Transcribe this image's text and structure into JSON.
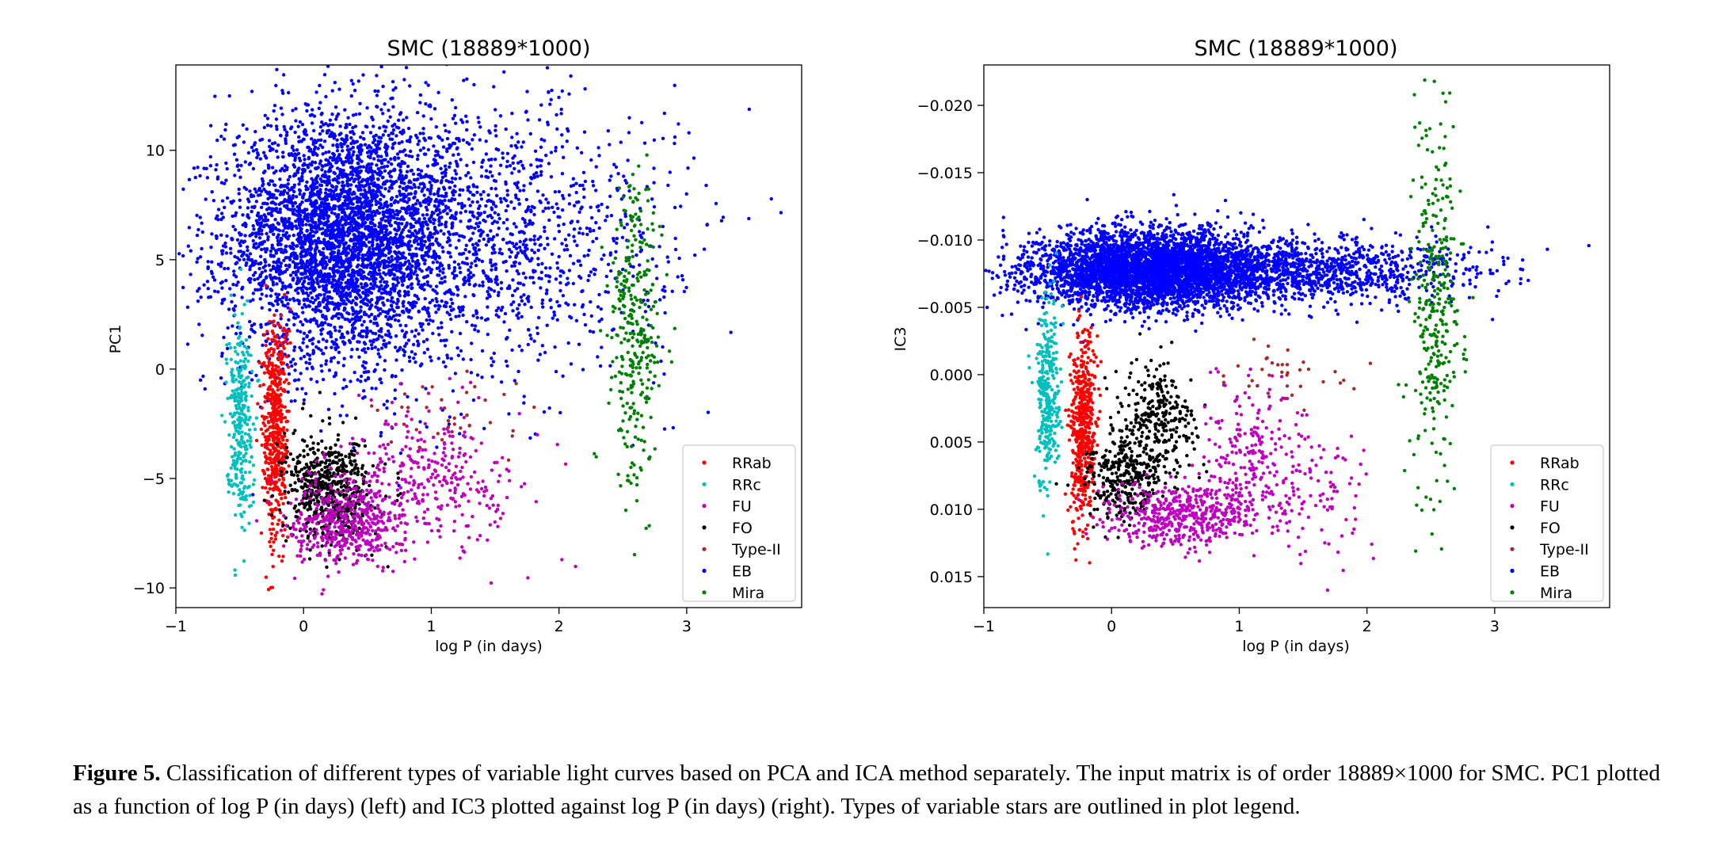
{
  "caption": {
    "label": "Figure 5.",
    "text": "Classification of different types of variable light curves based on PCA and ICA method separately. The input matrix is of order 18889×1000 for SMC. PC1 plotted as a function of log P (in days) (left) and IC3 plotted against log P (in days) (right). Types of variable stars are outlined in plot legend."
  },
  "colors": {
    "RRab": "#ff0000",
    "RRc": "#00bfbf",
    "FU": "#bf00bf",
    "FO": "#000000",
    "Type-II": "#a52a2a",
    "EB": "#0000ff",
    "Mira": "#008000"
  },
  "chart_data": [
    {
      "type": "scatter",
      "title": "SMC (18889*1000)",
      "xlabel": "log P (in days)",
      "ylabel": "PC1",
      "xlim": [
        -1.0,
        3.9
      ],
      "ylim": [
        -10.9,
        13.9
      ],
      "y_inverted": false,
      "xticks": [
        -1,
        0,
        1,
        2,
        3
      ],
      "xtick_labels": [
        "−1",
        "0",
        "1",
        "2",
        "3"
      ],
      "yticks": [
        -10,
        -5,
        0,
        5,
        10
      ],
      "ytick_labels": [
        "−10",
        "−5",
        "0",
        "5",
        "10"
      ],
      "grid": false,
      "legend_position": "bottom-right",
      "series": [
        {
          "name": "RRab",
          "count": 520,
          "clusters": [
            {
              "x": -0.22,
              "y": -2.8,
              "sx": 0.05,
              "sy": 2.6,
              "w": 1
            }
          ]
        },
        {
          "name": "RRc",
          "count": 300,
          "clusters": [
            {
              "x": -0.5,
              "y": -2.2,
              "sx": 0.05,
              "sy": 2.3,
              "w": 1
            }
          ]
        },
        {
          "name": "FU",
          "count": 800,
          "clusters": [
            {
              "x": 0.35,
              "y": -7.0,
              "sx": 0.22,
              "sy": 1.0,
              "w": 0.6
            },
            {
              "x": 0.9,
              "y": -4.8,
              "sx": 0.3,
              "sy": 1.6,
              "w": 0.3
            },
            {
              "x": 1.4,
              "y": -5.0,
              "sx": 0.3,
              "sy": 1.6,
              "w": 0.1
            }
          ]
        },
        {
          "name": "FO",
          "count": 600,
          "clusters": [
            {
              "x": 0.2,
              "y": -5.6,
              "sx": 0.17,
              "sy": 1.2,
              "w": 1
            }
          ]
        },
        {
          "name": "Type-II",
          "count": 35,
          "clusters": [
            {
              "x": 1.2,
              "y": -2.3,
              "sx": 0.3,
              "sy": 1.2,
              "w": 1
            }
          ]
        },
        {
          "name": "EB",
          "count": 5200,
          "clusters": [
            {
              "x": 0.3,
              "y": 6.0,
              "sx": 0.45,
              "sy": 2.8,
              "w": 0.7
            },
            {
              "x": 1.3,
              "y": 6.0,
              "sx": 0.8,
              "sy": 3.2,
              "w": 0.3
            }
          ]
        },
        {
          "name": "Mira",
          "count": 320,
          "clusters": [
            {
              "x": 2.6,
              "y": 1.6,
              "sx": 0.1,
              "sy": 3.5,
              "w": 1
            }
          ]
        }
      ]
    },
    {
      "type": "scatter",
      "title": "SMC (18889*1000)",
      "xlabel": "log P (in days)",
      "ylabel": "IC3",
      "xlim": [
        -1.0,
        3.9
      ],
      "ylim": [
        0.0173,
        -0.023
      ],
      "y_inverted": true,
      "xticks": [
        -1,
        0,
        1,
        2,
        3
      ],
      "xtick_labels": [
        "−1",
        "0",
        "1",
        "2",
        "3"
      ],
      "yticks": [
        -0.02,
        -0.015,
        -0.01,
        -0.005,
        0.0,
        0.005,
        0.01,
        0.015
      ],
      "ytick_labels": [
        "−0.020",
        "−0.015",
        "−0.010",
        "−0.005",
        "0.000",
        "0.005",
        "0.010",
        "0.015"
      ],
      "grid": false,
      "legend_position": "bottom-right",
      "series": [
        {
          "name": "RRab",
          "count": 520,
          "clusters": [
            {
              "x": -0.22,
              "y": 0.004,
              "sx": 0.05,
              "sy": 0.0035,
              "w": 1
            }
          ]
        },
        {
          "name": "RRc",
          "count": 300,
          "clusters": [
            {
              "x": -0.5,
              "y": 0.0015,
              "sx": 0.05,
              "sy": 0.0035,
              "w": 1
            }
          ]
        },
        {
          "name": "FU",
          "count": 800,
          "clusters": [
            {
              "x": 0.55,
              "y": 0.0105,
              "sx": 0.3,
              "sy": 0.0012,
              "w": 0.6
            },
            {
              "x": 1.05,
              "y": 0.006,
              "sx": 0.2,
              "sy": 0.003,
              "w": 0.25
            },
            {
              "x": 1.55,
              "y": 0.0085,
              "sx": 0.25,
              "sy": 0.0025,
              "w": 0.15
            }
          ]
        },
        {
          "name": "FO",
          "count": 600,
          "clusters": [
            {
              "x": 0.1,
              "y": 0.0075,
              "sx": 0.15,
              "sy": 0.0015,
              "w": 0.5
            },
            {
              "x": 0.35,
              "y": 0.0035,
              "sx": 0.15,
              "sy": 0.0022,
              "w": 0.5
            }
          ]
        },
        {
          "name": "Type-II",
          "count": 35,
          "clusters": [
            {
              "x": 1.4,
              "y": 0.0003,
              "sx": 0.25,
              "sy": 0.0012,
              "w": 1
            }
          ]
        },
        {
          "name": "EB",
          "count": 5200,
          "clusters": [
            {
              "x": 0.3,
              "y": -0.0078,
              "sx": 0.45,
              "sy": 0.0014,
              "w": 0.75
            },
            {
              "x": 1.4,
              "y": -0.0078,
              "sx": 0.75,
              "sy": 0.0012,
              "w": 0.25
            }
          ]
        },
        {
          "name": "Mira",
          "count": 320,
          "clusters": [
            {
              "x": 2.55,
              "y": -0.005,
              "sx": 0.1,
              "sy": 0.0065,
              "w": 1
            }
          ]
        }
      ]
    }
  ]
}
